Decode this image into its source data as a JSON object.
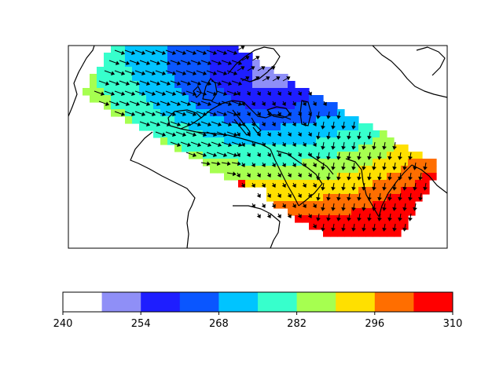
{
  "chart_data": {
    "type": "heatmap",
    "title": "",
    "xlabel": "",
    "ylabel": "",
    "grid": false,
    "map": {
      "region": "Europe, North Africa, Middle East, South Asia",
      "field": "filled contour bands with overlaid wind vector arrows"
    },
    "colorbar": {
      "orientation": "horizontal",
      "placement": "bottom",
      "range": [
        240,
        310
      ],
      "levels": [
        240,
        247,
        254,
        261,
        268,
        275,
        282,
        289,
        296,
        303,
        310
      ],
      "colors": [
        "#ffffff",
        "#8f8ff7",
        "#1e1eff",
        "#0a56ff",
        "#00c4ff",
        "#37ffcc",
        "#a6ff50",
        "#ffe000",
        "#ff6e00",
        "#ff0000"
      ],
      "tick_labels": [
        "240",
        "254",
        "268",
        "282",
        "296",
        "310"
      ]
    },
    "bands": [
      {
        "label": "240-247",
        "value_range": [
          240,
          247
        ],
        "color": "#ffffff"
      },
      {
        "label": "247-254",
        "value_range": [
          247,
          254
        ],
        "color": "#8f8ff7"
      },
      {
        "label": "254-261",
        "value_range": [
          254,
          261
        ],
        "color": "#1e1eff"
      },
      {
        "label": "261-268",
        "value_range": [
          261,
          268
        ],
        "color": "#0a56ff"
      },
      {
        "label": "268-275",
        "value_range": [
          268,
          275
        ],
        "color": "#00c4ff"
      },
      {
        "label": "275-282",
        "value_range": [
          275,
          282
        ],
        "color": "#37ffcc"
      },
      {
        "label": "282-289",
        "value_range": [
          282,
          289
        ],
        "color": "#a6ff50"
      },
      {
        "label": "289-296",
        "value_range": [
          289,
          296
        ],
        "color": "#ffe000"
      },
      {
        "label": "296-303",
        "value_range": [
          296,
          303
        ],
        "color": "#ff6e00"
      },
      {
        "label": "303-310",
        "value_range": [
          303,
          310
        ],
        "color": "#ff0000"
      }
    ]
  }
}
